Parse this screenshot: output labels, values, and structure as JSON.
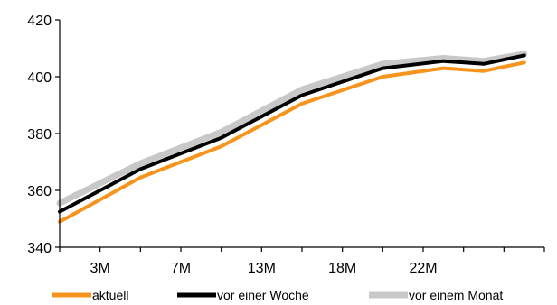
{
  "chart_data": {
    "type": "line",
    "title": "",
    "xlabel": "",
    "ylabel": "",
    "ylim": [
      340,
      420
    ],
    "yticks": [
      "340",
      "360",
      "380",
      "400",
      "420"
    ],
    "xlim": [
      1,
      25
    ],
    "xticks": [
      {
        "label": "3M",
        "value": 3
      },
      {
        "label": "7M",
        "value": 7
      },
      {
        "label": "13M",
        "value": 11
      },
      {
        "label": "18M",
        "value": 15
      },
      {
        "label": "22M",
        "value": 19
      }
    ],
    "series": [
      {
        "name": "vor einem Monat",
        "color": "#c8c8c8",
        "x": [
          1,
          5,
          9,
          13,
          17,
          20,
          22,
          24
        ],
        "values": [
          355.5,
          369.5,
          380.5,
          395.5,
          404.5,
          406.5,
          405.5,
          408
        ]
      },
      {
        "name": "vor einer Woche",
        "color": "#000000",
        "x": [
          1,
          5,
          9,
          13,
          17,
          20,
          22,
          24
        ],
        "values": [
          352.5,
          367.5,
          378.5,
          393.5,
          403,
          405.5,
          404.5,
          407.5
        ]
      },
      {
        "name": "aktuell",
        "color": "#f7941d",
        "x": [
          1,
          5,
          9,
          13,
          17,
          20,
          22,
          24
        ],
        "values": [
          349,
          364.5,
          375.5,
          390.5,
          400,
          403,
          402,
          405
        ]
      }
    ],
    "legend": {
      "placement": "bottom",
      "items": [
        {
          "label": "aktuell",
          "color": "#f7941d"
        },
        {
          "label": "vor einer Woche",
          "color": "#000000"
        },
        {
          "label": "vor einem Monat",
          "color": "#c8c8c8"
        }
      ]
    },
    "grid": false
  }
}
